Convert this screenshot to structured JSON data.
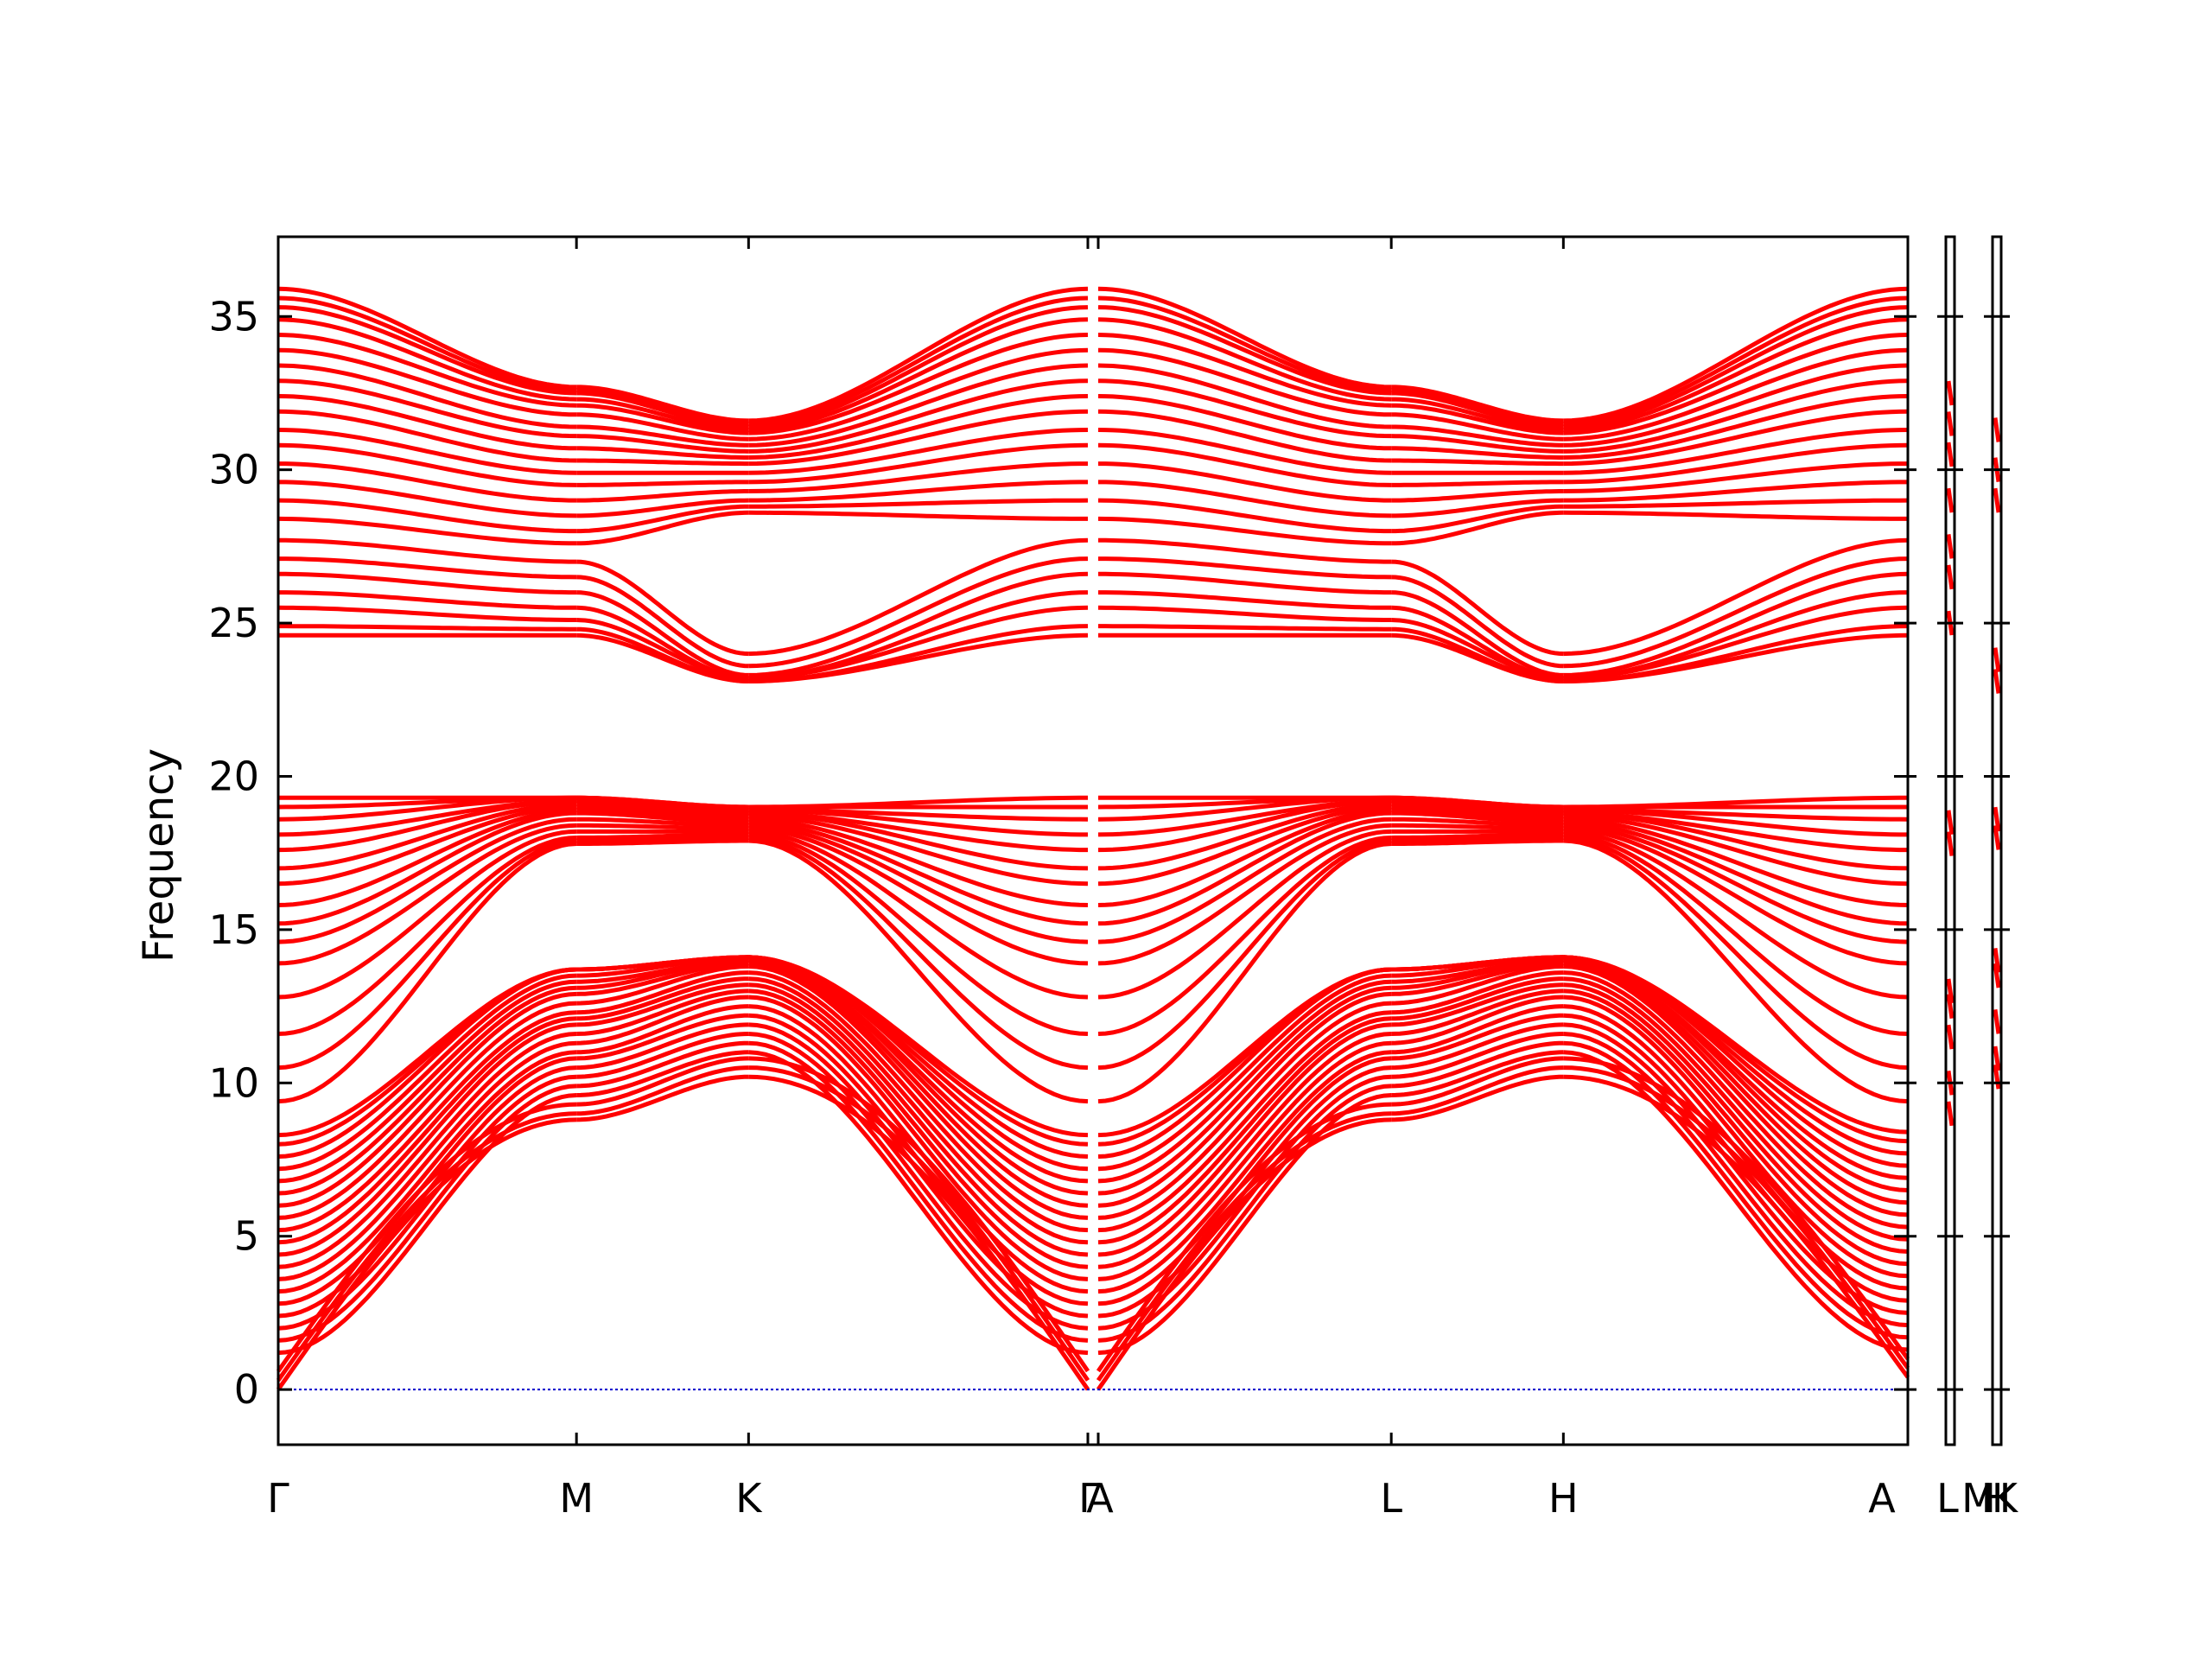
{
  "chart_data": {
    "type": "line",
    "title": "",
    "ylabel": "Frequency",
    "xlabel": "",
    "ylim": [
      -1.8,
      37.6
    ],
    "yticks": [
      0,
      5,
      10,
      15,
      20,
      25,
      30,
      35
    ],
    "ytick_labels": [
      "0",
      "5",
      "10",
      "15",
      "20",
      "25",
      "30",
      "35"
    ],
    "segments": [
      {
        "from": "Γ",
        "to": "M",
        "length": 1.0
      },
      {
        "from": "M",
        "to": "K",
        "length": 0.577
      },
      {
        "from": "K",
        "to": "Γ",
        "length": 1.155
      },
      {
        "from": "A",
        "to": "L",
        "length": 1.0
      },
      {
        "from": "L",
        "to": "H",
        "length": 0.577
      },
      {
        "from": "H",
        "to": "A",
        "length": 1.155
      }
    ],
    "xtick_labels": [
      {
        "label": "Γ",
        "panel": 0
      },
      {
        "label": "M",
        "panel": 0
      },
      {
        "label": "K",
        "panel": 0
      },
      {
        "label": "Γ",
        "panel": 0
      },
      {
        "label": "A",
        "panel": 0
      },
      {
        "label": "L",
        "panel": 0
      },
      {
        "label": "H",
        "panel": 0
      },
      {
        "label": "A",
        "panel": 0
      },
      {
        "label": "L",
        "panel": 1
      },
      {
        "label": "M",
        "panel": 1
      },
      {
        "label": "H",
        "panel": 2
      },
      {
        "label": "K",
        "panel": 2
      }
    ],
    "band_color": "#ff0000",
    "zero_line_color": "#0000cc",
    "zero_line": 0,
    "acoustic_groups": [
      {
        "name": "acoustic",
        "gamma": [
          0.0,
          0.4,
          0.8,
          1.2,
          1.6,
          2.0,
          2.4,
          2.8,
          3.2,
          3.6,
          4.0,
          4.4,
          4.8,
          5.2,
          5.6,
          6.0,
          6.4,
          6.8,
          7.2,
          7.6,
          8.0,
          8.3
        ],
        "M": [
          8.8,
          9.0,
          9.3,
          9.6,
          9.9,
          10.2,
          10.5,
          10.8,
          11.0,
          11.3,
          11.6,
          11.9,
          12.1,
          12.3,
          12.6,
          12.9,
          13.1,
          13.3,
          13.5,
          13.7,
          13.7,
          13.7
        ],
        "K": [
          10.2,
          10.5,
          10.8,
          11.0,
          11.3,
          11.6,
          11.9,
          12.2,
          12.5,
          12.8,
          13.0,
          13.2,
          13.4,
          13.6,
          13.8,
          13.9,
          14.0,
          14.0,
          14.1,
          14.1,
          14.1,
          14.1
        ]
      }
    ],
    "optical_low_gamma": [
      9.4,
      10.5,
      11.6,
      12.8,
      13.9,
      14.6,
      15.2,
      15.8,
      16.5,
      17.0,
      17.6,
      18.1,
      18.6,
      19.0,
      19.3
    ],
    "optical_low_M": [
      17.8,
      17.9,
      18.0,
      18.2,
      18.4,
      18.6,
      18.8,
      18.9,
      19.0,
      19.1,
      19.2,
      19.2,
      19.3,
      19.3,
      19.3
    ],
    "optical_low_K": [
      17.9,
      18.0,
      18.1,
      18.2,
      18.3,
      18.4,
      18.5,
      18.6,
      18.7,
      18.8,
      18.8,
      18.9,
      18.9,
      19.0,
      19.0
    ],
    "optical_high_gamma": [
      24.6,
      24.9,
      25.5,
      26.0,
      26.6,
      27.1,
      27.7,
      28.4,
      29.0,
      29.6,
      30.2,
      30.8,
      31.3,
      31.9,
      32.4,
      32.9,
      33.4,
      33.9,
      34.4,
      34.9,
      35.3,
      35.6,
      35.9
    ],
    "optical_high_M": [
      24.6,
      24.8,
      25.1,
      25.5,
      26.0,
      26.5,
      27.0,
      27.6,
      28.0,
      28.5,
      29.0,
      29.5,
      29.9,
      30.3,
      30.7,
      31.1,
      31.4,
      31.8,
      32.1,
      32.3,
      32.5,
      32.6,
      32.7
    ],
    "optical_high_K": [
      23.1,
      23.1,
      23.2,
      23.2,
      23.3,
      23.6,
      24.0,
      28.6,
      28.8,
      29.0,
      29.3,
      29.6,
      29.9,
      30.2,
      30.4,
      30.6,
      30.8,
      31.0,
      31.2,
      31.3,
      31.4,
      31.5,
      31.6
    ]
  }
}
